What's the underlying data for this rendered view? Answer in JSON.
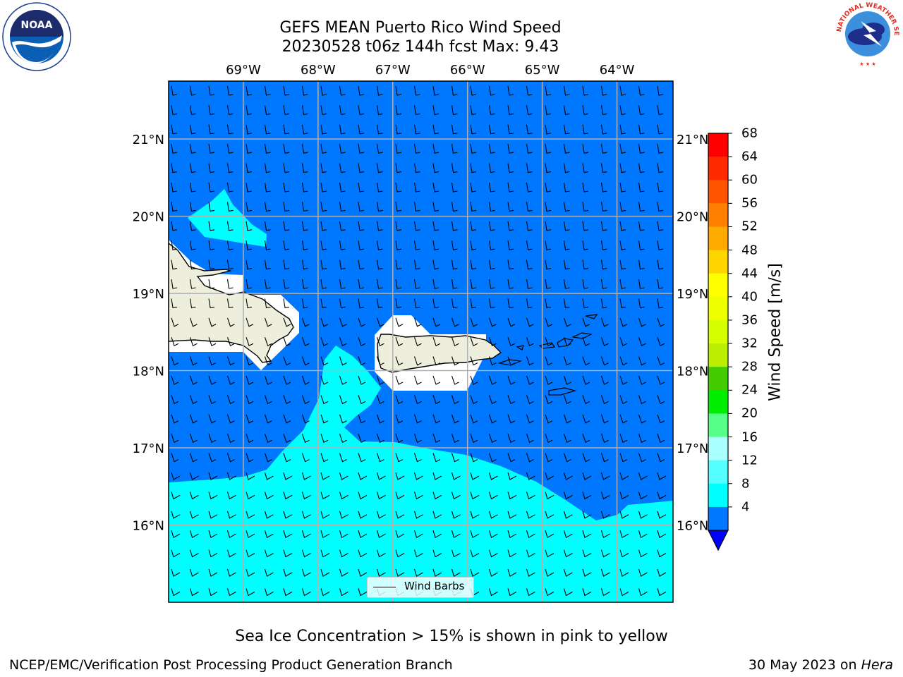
{
  "header": {
    "title_line1": "GEFS MEAN Puerto Rico Wind Speed",
    "title_line2": "20230528 t06z 144h fcst   Max: 9.43"
  },
  "logos": {
    "left": {
      "name": "noaa-logo",
      "text": "NOAA"
    },
    "right": {
      "name": "nws-logo",
      "text": "NATIONAL WEATHER SERVICE"
    }
  },
  "map": {
    "lon_labels": [
      "69°W",
      "68°W",
      "67°W",
      "66°W",
      "65°W",
      "64°W"
    ],
    "lat_labels": [
      "21°N",
      "20°N",
      "19°N",
      "18°N",
      "17°N",
      "16°N"
    ],
    "lon_range": [
      -70.0,
      -63.25
    ],
    "lat_range": [
      15.0,
      21.75
    ],
    "legend_label": "Wind Barbs",
    "colors": {
      "land": "#eeeedd",
      "masked": "#ffffff",
      "wind_4_8": "#0077ff",
      "wind_8_12": "#00ffff",
      "grid": "#b0b0b0"
    }
  },
  "colorbar": {
    "title": "Wind Speed [m/s]",
    "ticks": [
      "68",
      "64",
      "60",
      "56",
      "52",
      "48",
      "44",
      "40",
      "36",
      "32",
      "28",
      "24",
      "20",
      "16",
      "12",
      "8",
      "4"
    ],
    "colors": [
      "#ff0000",
      "#ff2a00",
      "#ff5500",
      "#ff8000",
      "#ffaa00",
      "#ffd500",
      "#ffff00",
      "#eeff00",
      "#d5ff00",
      "#bbee00",
      "#44cc00",
      "#00ee00",
      "#55ff88",
      "#aaffff",
      "#55ffff",
      "#00ffff",
      "#0077ff",
      "#0000ff"
    ]
  },
  "notes": {
    "sea_ice": "Sea Ice Concentration > 15% is shown in pink to yellow"
  },
  "footer": {
    "left": "NCEP/EMC/Verification Post Processing Product Generation Branch",
    "date": "30 May 2023 on ",
    "machine": "Hera"
  }
}
